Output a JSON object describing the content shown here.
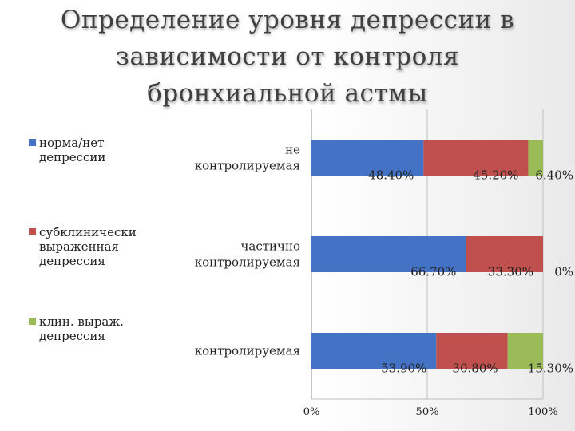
{
  "title_lines": [
    "Определение уровня депрессии в",
    "зависимости от контроля",
    "бронхиальной астмы"
  ],
  "chart_data": {
    "type": "bar",
    "orientation": "horizontal",
    "stacked": true,
    "xlim": [
      0,
      100
    ],
    "x_ticks": [
      "0%",
      "50%",
      "100%"
    ],
    "legend_position": "left",
    "categories": [
      {
        "lines": [
          "не",
          "контролируемая"
        ]
      },
      {
        "lines": [
          "частично",
          "контролируемая"
        ]
      },
      {
        "lines": [
          "контролируемая"
        ]
      }
    ],
    "series": [
      {
        "name": "норма/нет депрессии",
        "name_lines": [
          "норма/нет",
          "депрессии"
        ],
        "color": "#4472c4",
        "values": [
          48.4,
          66.7,
          53.9
        ],
        "labels": [
          "48.40%",
          "66.70%",
          "53.90%"
        ]
      },
      {
        "name": "субклинически выраженная депрессия",
        "name_lines": [
          "субклинически",
          "выраженная",
          "депрессия"
        ],
        "color": "#c0504d",
        "values": [
          45.2,
          33.3,
          30.8
        ],
        "labels": [
          "45.20%",
          "33.30%",
          "30.80%"
        ]
      },
      {
        "name": "клин. выраж. депрессия",
        "name_lines": [
          "клин. выраж.",
          "депрессия"
        ],
        "color": "#9bbb59",
        "values": [
          6.4,
          0,
          15.3
        ],
        "labels": [
          "6.40%",
          "0%",
          "15.30%"
        ]
      }
    ]
  }
}
